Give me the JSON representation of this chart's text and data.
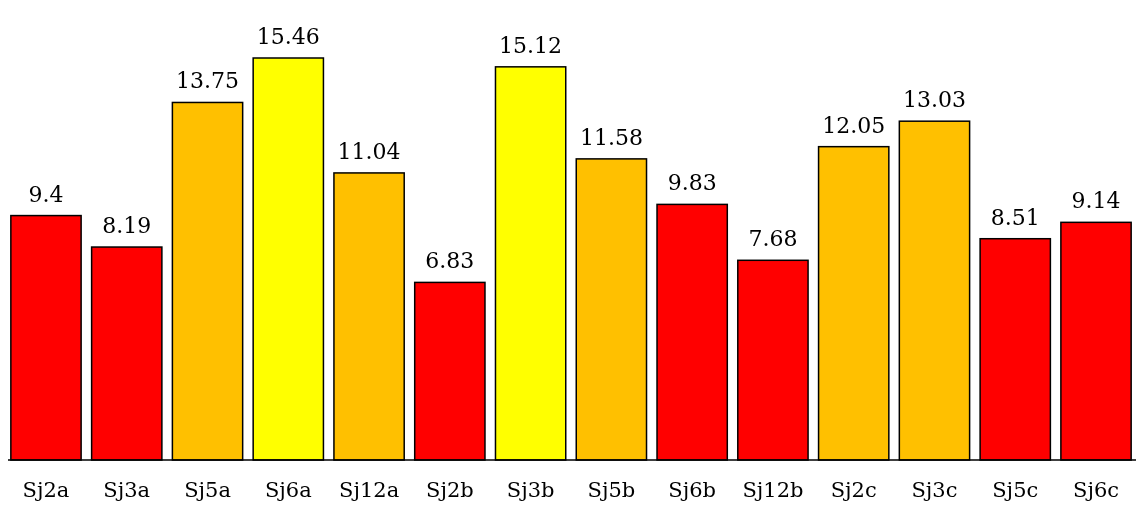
{
  "chart_data": {
    "type": "bar",
    "categories": [
      "Sj2a",
      "Sj3a",
      "Sj5a",
      "Sj6a",
      "Sj12a",
      "Sj2b",
      "Sj3b",
      "Sj5b",
      "Sj6b",
      "Sj12b",
      "Sj2c",
      "Sj3c",
      "Sj5c",
      "Sj6c"
    ],
    "values": [
      9.4,
      8.19,
      13.75,
      15.46,
      11.04,
      6.83,
      15.12,
      11.58,
      9.83,
      7.68,
      12.05,
      13.03,
      8.51,
      9.14
    ],
    "colors": [
      "#ff0000",
      "#ff0000",
      "#ffc000",
      "#ffff00",
      "#ffc000",
      "#ff0000",
      "#ffff00",
      "#ffc000",
      "#ff0000",
      "#ff0000",
      "#ffc000",
      "#ffc000",
      "#ff0000",
      "#ff0000"
    ],
    "data_labels": true
  }
}
